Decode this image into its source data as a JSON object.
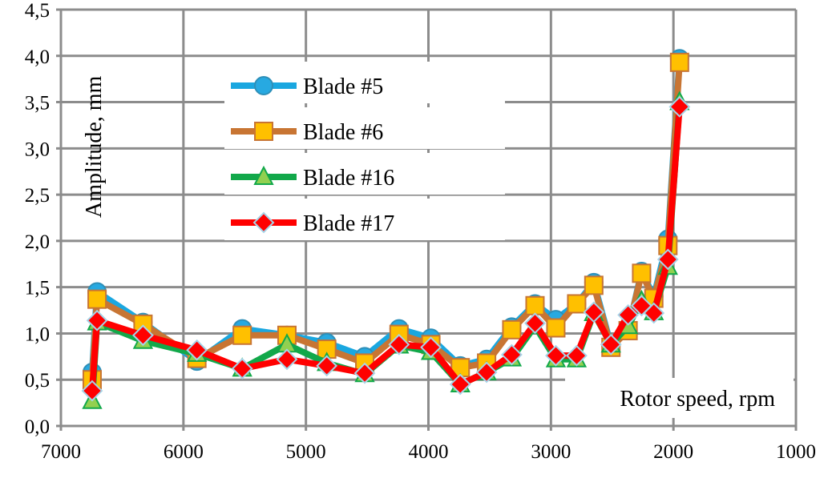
{
  "chart_data": {
    "type": "line",
    "title": "",
    "xlabel": "Rotor speed, rpm",
    "ylabel": "Amplitude, mm",
    "xlim": [
      7000,
      1000
    ],
    "ylim": [
      0,
      4.5
    ],
    "x_reversed": true,
    "grid": true,
    "legend_position": "top-left",
    "xticks": [
      "7000",
      "6000",
      "5000",
      "4000",
      "3000",
      "2000",
      "1000"
    ],
    "yticks": [
      "0,0",
      "0,5",
      "1,0",
      "1,5",
      "2,0",
      "2,5",
      "3,0",
      "3,5",
      "4,0",
      "4,5"
    ],
    "x": [
      6745,
      6705,
      6330,
      5890,
      5520,
      5155,
      4830,
      4520,
      4240,
      3980,
      3740,
      3525,
      3320,
      3130,
      2960,
      2790,
      2650,
      2510,
      2370,
      2260,
      2160,
      2045,
      1950
    ],
    "series": [
      {
        "name": "Blade #5",
        "color": "#1aa7e0",
        "marker": "circle",
        "values": [
          0.58,
          1.45,
          1.12,
          0.7,
          1.05,
          0.98,
          0.9,
          0.75,
          1.05,
          0.95,
          0.65,
          0.72,
          1.07,
          1.32,
          1.15,
          1.32,
          1.55,
          0.87,
          1.03,
          1.67,
          1.4,
          2.02,
          3.97
        ]
      },
      {
        "name": "Blade #6",
        "color": "#c87533",
        "marker": "square",
        "values": [
          0.5,
          1.37,
          1.1,
          0.73,
          0.98,
          0.98,
          0.83,
          0.68,
          0.99,
          0.88,
          0.63,
          0.68,
          1.04,
          1.3,
          1.06,
          1.32,
          1.52,
          0.85,
          1.03,
          1.65,
          1.38,
          1.95,
          3.93
        ]
      },
      {
        "name": "Blade #16",
        "color": "#12a84a",
        "marker": "triangle",
        "values": [
          0.27,
          1.12,
          0.92,
          0.78,
          0.62,
          0.88,
          0.68,
          0.56,
          0.87,
          0.8,
          0.45,
          0.58,
          0.73,
          1.08,
          0.72,
          0.72,
          1.22,
          0.88,
          1.08,
          1.35,
          1.23,
          1.72,
          3.5
        ]
      },
      {
        "name": "Blade #17",
        "color": "#ff0000",
        "marker": "diamond",
        "values": [
          0.38,
          1.14,
          0.98,
          0.82,
          0.62,
          0.72,
          0.65,
          0.57,
          0.88,
          0.85,
          0.45,
          0.58,
          0.77,
          1.11,
          0.76,
          0.76,
          1.23,
          0.88,
          1.2,
          1.3,
          1.22,
          1.8,
          3.45
        ]
      }
    ]
  }
}
